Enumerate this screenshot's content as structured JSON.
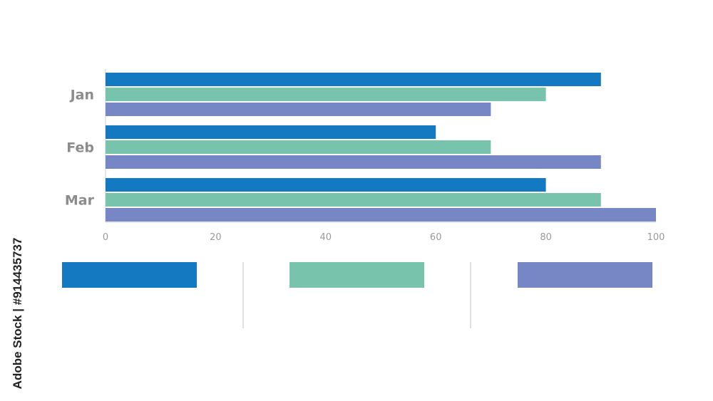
{
  "chart_data": {
    "type": "bar",
    "orientation": "horizontal",
    "categories": [
      "Jan",
      "Feb",
      "Mar"
    ],
    "series": [
      {
        "values": [
          90,
          60,
          80
        ],
        "color": "#1479c0"
      },
      {
        "values": [
          80,
          70,
          90
        ],
        "color": "#77c3ab"
      },
      {
        "values": [
          70,
          90,
          100
        ],
        "color": "#7787c5"
      }
    ],
    "xlim": [
      0,
      100
    ],
    "xticks": [
      "0",
      "20",
      "40",
      "60",
      "80",
      "100"
    ],
    "grid": false,
    "legend": "bottom"
  },
  "watermark": {
    "text": "Adobe Stock | #914435737"
  }
}
